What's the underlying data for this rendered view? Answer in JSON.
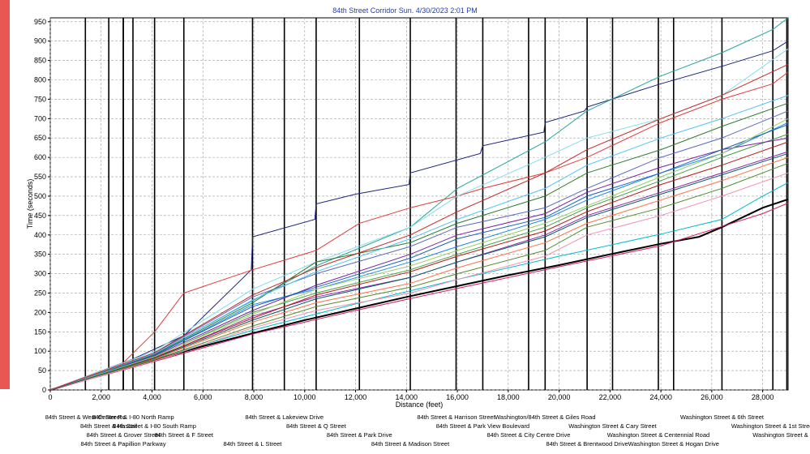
{
  "title": "84th Street Corridor   Sun. 4/30/2023 2:01 PM",
  "chart_data": {
    "type": "line",
    "title": "84th Street Corridor   Sun. 4/30/2023 2:01 PM",
    "xlabel": "Distance (feet)",
    "ylabel": "Time (seconds)",
    "xlim": [
      0,
      29000
    ],
    "ylim": [
      0,
      960
    ],
    "xticks": [
      0,
      2000,
      4000,
      6000,
      8000,
      10000,
      12000,
      14000,
      16000,
      18000,
      20000,
      22000,
      24000,
      26000,
      28000
    ],
    "xtick_labels": [
      "0",
      "2,000",
      "4,000",
      "6,000",
      "8,000",
      "10,000",
      "12,000",
      "14,000",
      "16,000",
      "18,000",
      "20,000",
      "22,000",
      "24,000",
      "26,000",
      "28,000"
    ],
    "yticks": [
      0,
      50,
      100,
      150,
      200,
      250,
      300,
      350,
      400,
      450,
      500,
      550,
      600,
      650,
      700,
      750,
      800,
      850,
      900,
      950
    ],
    "grid": true,
    "intersections": [
      {
        "x": 1380,
        "label": "84th Street & West Center Ro"
      },
      {
        "x": 2300,
        "label": "84th Street & Hascall"
      },
      {
        "x": 2870,
        "label": "84th Street & Grover Street"
      },
      {
        "x": 2870,
        "label": "84th Street & Papillion Parkway"
      },
      {
        "x": 3250,
        "label": "84th Street & I-80 North Ramp"
      },
      {
        "x": 4100,
        "label": "84th Street & I-80 South Ramp"
      },
      {
        "x": 5250,
        "label": "84th Street & F Street"
      },
      {
        "x": 7950,
        "label": "84th Street & L Street"
      },
      {
        "x": 9200,
        "label": "84th Street & Lakeview Drive"
      },
      {
        "x": 10450,
        "label": "84th Street & Q Street"
      },
      {
        "x": 12150,
        "label": "84th Street & Park Drive"
      },
      {
        "x": 14150,
        "label": "84th Street & Madison Street"
      },
      {
        "x": 15950,
        "label": "84th Street & Harrison Street"
      },
      {
        "x": 17000,
        "label": "84th Street & Park View Boulevard"
      },
      {
        "x": 18800,
        "label": "84th Street & City Centre Drive"
      },
      {
        "x": 19450,
        "label": "Washington/84th Street & Giles Road"
      },
      {
        "x": 21100,
        "label": "84th Street & Brentwood Drive"
      },
      {
        "x": 22100,
        "label": "Washington Street & Cary Street"
      },
      {
        "x": 23900,
        "label": "Washington Street & Centennial Road"
      },
      {
        "x": 24500,
        "label": "Washington Street & Hogan Drive"
      },
      {
        "x": 26400,
        "label": "Washington Street & 6th Street"
      },
      {
        "x": 28400,
        "label": "Washington Street & 1st Street"
      },
      {
        "x": 28950,
        "label": "Washington Street & Linc"
      }
    ],
    "intersection_label_rows": [
      [
        "84th Street & West Center Ro",
        "84th Street & I-80 North Ramp",
        "84th Street & Lakeview Drive",
        "84th Street & Harrison Street",
        "Washington/84th Street & Giles Road",
        "Washington Street & 6th Street"
      ],
      [
        "84th Street & Hascall",
        "84th Street & I-80 South Ramp",
        "84th Street & Q Street",
        "84th Street & Park View Boulevard",
        "Washington Street & Cary Street",
        "Washington Street & 1st Street"
      ],
      [
        "84th Street & Grover Street",
        "84th Street & F Street",
        "84th Street & Park Drive",
        "84th Street & City Centre Drive",
        "Washington Street & Centennial Road",
        "Washington Street & Linc"
      ],
      [
        "84th Street & Papillion Parkway",
        "84th Street & L Street",
        "84th Street & Madison Street",
        "84th Street & Brentwood Drive",
        "Washington Street & Hogan Drive"
      ]
    ],
    "series": [
      {
        "color": "#000000",
        "x": [
          0,
          2000,
          4000,
          6000,
          8000,
          10000,
          12000,
          14000,
          16000,
          18000,
          20000,
          22000,
          24000,
          25500,
          26400,
          28000,
          29000
        ],
        "y": [
          0,
          38,
          76,
          113,
          147,
          180,
          210,
          240,
          268,
          296,
          322,
          350,
          377,
          395,
          420,
          470,
          492
        ]
      },
      {
        "color": "#d81b60",
        "x": [
          0,
          4000,
          8000,
          12000,
          16000,
          20000,
          24000,
          28000,
          29000
        ],
        "y": [
          0,
          72,
          145,
          205,
          262,
          318,
          372,
          455,
          482
        ]
      },
      {
        "color": "#00bcd4",
        "x": [
          0,
          4000,
          8000,
          12000,
          16000,
          20000,
          24000,
          26400,
          28000,
          29000
        ],
        "y": [
          0,
          78,
          155,
          222,
          285,
          345,
          402,
          440,
          500,
          535
        ]
      },
      {
        "color": "#1a237e",
        "x": [
          0,
          3250,
          5250,
          7900,
          7950,
          10400,
          10450,
          12000,
          14100,
          14150,
          16900,
          17000,
          19400,
          19450,
          21000,
          21100,
          24000,
          26400,
          28400,
          29000
        ],
        "y": [
          0,
          80,
          140,
          310,
          395,
          440,
          480,
          505,
          530,
          560,
          610,
          630,
          665,
          690,
          720,
          730,
          790,
          835,
          875,
          900
        ]
      },
      {
        "color": "#26a69a",
        "x": [
          0,
          4100,
          7950,
          10450,
          14150,
          16000,
          19450,
          21100,
          24000,
          26400,
          28400,
          29000
        ],
        "y": [
          0,
          95,
          230,
          320,
          420,
          520,
          640,
          720,
          810,
          870,
          930,
          960
        ]
      },
      {
        "color": "#e53935",
        "x": [
          0,
          2870,
          4100,
          5250,
          7950,
          10450,
          12150,
          14150,
          16000,
          17000,
          19450,
          21100,
          24000,
          26400,
          28400,
          29000
        ],
        "y": [
          0,
          70,
          150,
          250,
          310,
          360,
          430,
          470,
          500,
          520,
          560,
          600,
          690,
          750,
          790,
          820
        ]
      },
      {
        "color": "#1e88e5",
        "x": [
          0,
          4100,
          7950,
          10450,
          14150,
          16000,
          19450,
          21100,
          24000,
          26400,
          29000
        ],
        "y": [
          0,
          90,
          220,
          260,
          330,
          370,
          440,
          490,
          560,
          610,
          690
        ]
      },
      {
        "color": "#43a047",
        "x": [
          0,
          4100,
          7950,
          10450,
          14150,
          16000,
          19450,
          21100,
          24000,
          26400,
          29000
        ],
        "y": [
          0,
          85,
          200,
          250,
          310,
          350,
          420,
          470,
          540,
          600,
          660
        ]
      },
      {
        "color": "#8e24aa",
        "x": [
          0,
          4100,
          7950,
          10450,
          14150,
          16000,
          19450,
          21100,
          24000,
          26400,
          29000
        ],
        "y": [
          0,
          82,
          190,
          240,
          290,
          330,
          400,
          450,
          510,
          560,
          615
        ]
      },
      {
        "color": "#ff7043",
        "x": [
          0,
          4100,
          7950,
          10450,
          14150,
          16000,
          19450,
          21100,
          24000,
          26400,
          29000
        ],
        "y": [
          0,
          80,
          175,
          225,
          275,
          315,
          380,
          430,
          490,
          540,
          600
        ]
      },
      {
        "color": "#558b2f",
        "x": [
          0,
          4100,
          7950,
          10450,
          14150,
          16000,
          19450,
          21100,
          24000,
          26400,
          29000
        ],
        "y": [
          0,
          78,
          165,
          215,
          265,
          300,
          360,
          420,
          470,
          520,
          585
        ]
      },
      {
        "color": "#5c6bc0",
        "x": [
          0,
          4100,
          7950,
          10450,
          14150,
          16000,
          19450,
          21100,
          24000,
          26400,
          29000
        ],
        "y": [
          0,
          95,
          240,
          300,
          370,
          420,
          470,
          520,
          600,
          650,
          720
        ]
      },
      {
        "color": "#80deea",
        "x": [
          0,
          4100,
          7950,
          10450,
          14150,
          16000,
          19450,
          21100,
          24000,
          26400,
          29000
        ],
        "y": [
          0,
          100,
          260,
          330,
          420,
          500,
          600,
          650,
          700,
          760,
          880
        ]
      },
      {
        "color": "#7b1fa2",
        "x": [
          0,
          4100,
          7950,
          10450,
          14150,
          16000,
          19450,
          21100,
          24000,
          26400,
          29000
        ],
        "y": [
          0,
          88,
          205,
          270,
          350,
          400,
          455,
          510,
          575,
          620,
          650
        ]
      },
      {
        "color": "#2e7d32",
        "x": [
          0,
          4100,
          7950,
          10450,
          14150,
          16000,
          19450,
          21100,
          24000,
          26400,
          29000
        ],
        "y": [
          0,
          92,
          225,
          330,
          380,
          430,
          500,
          560,
          620,
          680,
          740
        ]
      },
      {
        "color": "#f48fb1",
        "x": [
          0,
          4100,
          7950,
          10450,
          14150,
          16000,
          19450,
          21100,
          24000,
          26400,
          29000
        ],
        "y": [
          0,
          75,
          160,
          205,
          250,
          285,
          345,
          400,
          450,
          500,
          560
        ]
      },
      {
        "color": "#b71c1c",
        "x": [
          0,
          4100,
          7950,
          10450,
          14150,
          16000,
          19450,
          21100,
          24000,
          26400,
          29000
        ],
        "y": [
          0,
          84,
          185,
          245,
          305,
          345,
          410,
          460,
          530,
          580,
          640
        ]
      },
      {
        "color": "#1565c0",
        "x": [
          0,
          4100,
          7950,
          10450,
          14150,
          16000,
          19450,
          21100,
          24000,
          26400,
          29000
        ],
        "y": [
          0,
          90,
          215,
          265,
          340,
          390,
          445,
          500,
          560,
          620,
          685
        ]
      },
      {
        "color": "#9ccc65",
        "x": [
          0,
          4100,
          7950,
          10450,
          14150,
          16000,
          19450,
          21100,
          24000,
          26400,
          29000
        ],
        "y": [
          0,
          86,
          195,
          260,
          320,
          360,
          430,
          475,
          550,
          610,
          700
        ]
      },
      {
        "color": "#006064",
        "x": [
          0,
          4100,
          7950,
          10450,
          14150,
          16000,
          19450,
          21100,
          24000,
          26400,
          29000
        ],
        "y": [
          0,
          82,
          180,
          235,
          290,
          330,
          395,
          445,
          505,
          555,
          610
        ]
      },
      {
        "color": "#4fc3f7",
        "x": [
          0,
          4100,
          7950,
          10450,
          14150,
          16000,
          19450,
          21100,
          24000,
          26400,
          29000
        ],
        "y": [
          0,
          94,
          232,
          305,
          390,
          440,
          520,
          580,
          650,
          700,
          760
        ]
      },
      {
        "color": "#c62828",
        "x": [
          0,
          4100,
          7950,
          10450,
          14150,
          16000,
          19450,
          21100,
          24000,
          26400,
          29000
        ],
        "y": [
          0,
          96,
          245,
          315,
          400,
          460,
          560,
          620,
          700,
          760,
          840
        ]
      }
    ]
  }
}
